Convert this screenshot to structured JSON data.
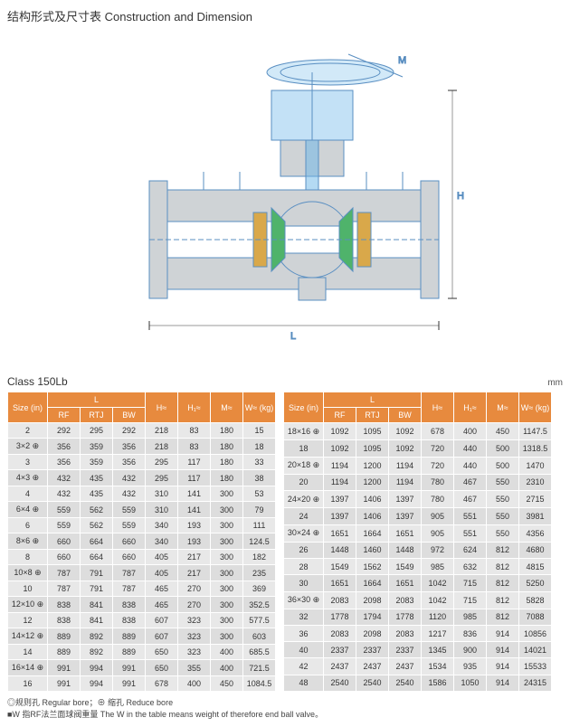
{
  "title": "结构形式及尺寸表 Construction and Dimension",
  "classLabel": "Class 150Lb",
  "unit": "mm",
  "headers": {
    "size": "Size\n(in)",
    "L": "L",
    "RF": "RF",
    "RTJ": "RTJ",
    "BW": "BW",
    "H": "H≈",
    "H1": "H₁≈",
    "M": "M≈",
    "W": "W≈\n(kg)"
  },
  "diagram": {
    "labels": [
      "M",
      "H",
      "L"
    ],
    "colors": {
      "body": "#cfd3d6",
      "blue": "#6ab5e8",
      "green": "#4fb36b",
      "gold": "#d9a84a",
      "line": "#5a8fc2"
    }
  },
  "table1": {
    "rows": [
      [
        "2",
        "292",
        "295",
        "292",
        "218",
        "83",
        "180",
        "15"
      ],
      [
        "3×2 ⊕",
        "356",
        "359",
        "356",
        "218",
        "83",
        "180",
        "18"
      ],
      [
        "3",
        "356",
        "359",
        "356",
        "295",
        "117",
        "180",
        "33"
      ],
      [
        "4×3 ⊕",
        "432",
        "435",
        "432",
        "295",
        "117",
        "180",
        "38"
      ],
      [
        "4",
        "432",
        "435",
        "432",
        "310",
        "141",
        "300",
        "53"
      ],
      [
        "6×4 ⊕",
        "559",
        "562",
        "559",
        "310",
        "141",
        "300",
        "79"
      ],
      [
        "6",
        "559",
        "562",
        "559",
        "340",
        "193",
        "300",
        "111"
      ],
      [
        "8×6 ⊕",
        "660",
        "664",
        "660",
        "340",
        "193",
        "300",
        "124.5"
      ],
      [
        "8",
        "660",
        "664",
        "660",
        "405",
        "217",
        "300",
        "182"
      ],
      [
        "10×8 ⊕",
        "787",
        "791",
        "787",
        "405",
        "217",
        "300",
        "235"
      ],
      [
        "10",
        "787",
        "791",
        "787",
        "465",
        "270",
        "300",
        "369"
      ],
      [
        "12×10 ⊕",
        "838",
        "841",
        "838",
        "465",
        "270",
        "300",
        "352.5"
      ],
      [
        "12",
        "838",
        "841",
        "838",
        "607",
        "323",
        "300",
        "577.5"
      ],
      [
        "14×12 ⊕",
        "889",
        "892",
        "889",
        "607",
        "323",
        "300",
        "603"
      ],
      [
        "14",
        "889",
        "892",
        "889",
        "650",
        "323",
        "400",
        "685.5"
      ],
      [
        "16×14 ⊕",
        "991",
        "994",
        "991",
        "650",
        "355",
        "400",
        "721.5"
      ],
      [
        "16",
        "991",
        "994",
        "991",
        "678",
        "400",
        "450",
        "1084.5"
      ]
    ]
  },
  "table2": {
    "rows": [
      [
        "18×16 ⊕",
        "1092",
        "1095",
        "1092",
        "678",
        "400",
        "450",
        "1147.5"
      ],
      [
        "18",
        "1092",
        "1095",
        "1092",
        "720",
        "440",
        "500",
        "1318.5"
      ],
      [
        "20×18 ⊕",
        "1194",
        "1200",
        "1194",
        "720",
        "440",
        "500",
        "1470"
      ],
      [
        "20",
        "1194",
        "1200",
        "1194",
        "780",
        "467",
        "550",
        "2310"
      ],
      [
        "24×20 ⊕",
        "1397",
        "1406",
        "1397",
        "780",
        "467",
        "550",
        "2715"
      ],
      [
        "24",
        "1397",
        "1406",
        "1397",
        "905",
        "551",
        "550",
        "3981"
      ],
      [
        "30×24 ⊕",
        "1651",
        "1664",
        "1651",
        "905",
        "551",
        "550",
        "4356"
      ],
      [
        "26",
        "1448",
        "1460",
        "1448",
        "972",
        "624",
        "812",
        "4680"
      ],
      [
        "28",
        "1549",
        "1562",
        "1549",
        "985",
        "632",
        "812",
        "4815"
      ],
      [
        "30",
        "1651",
        "1664",
        "1651",
        "1042",
        "715",
        "812",
        "5250"
      ],
      [
        "36×30 ⊕",
        "2083",
        "2098",
        "2083",
        "1042",
        "715",
        "812",
        "5828"
      ],
      [
        "32",
        "1778",
        "1794",
        "1778",
        "1120",
        "985",
        "812",
        "7088"
      ],
      [
        "36",
        "2083",
        "2098",
        "2083",
        "1217",
        "836",
        "914",
        "10856"
      ],
      [
        "40",
        "2337",
        "2337",
        "2337",
        "1345",
        "900",
        "914",
        "14021"
      ],
      [
        "42",
        "2437",
        "2437",
        "2437",
        "1534",
        "935",
        "914",
        "15533"
      ],
      [
        "48",
        "2540",
        "2540",
        "2540",
        "1586",
        "1050",
        "914",
        "24315"
      ]
    ]
  },
  "notes": [
    "◎规则孔 Regular bore；⊕ 缩孔 Reduce bore",
    "■W 指RF法兰面球阀重量 The W in the table means weight of therefore end ball valve。"
  ]
}
